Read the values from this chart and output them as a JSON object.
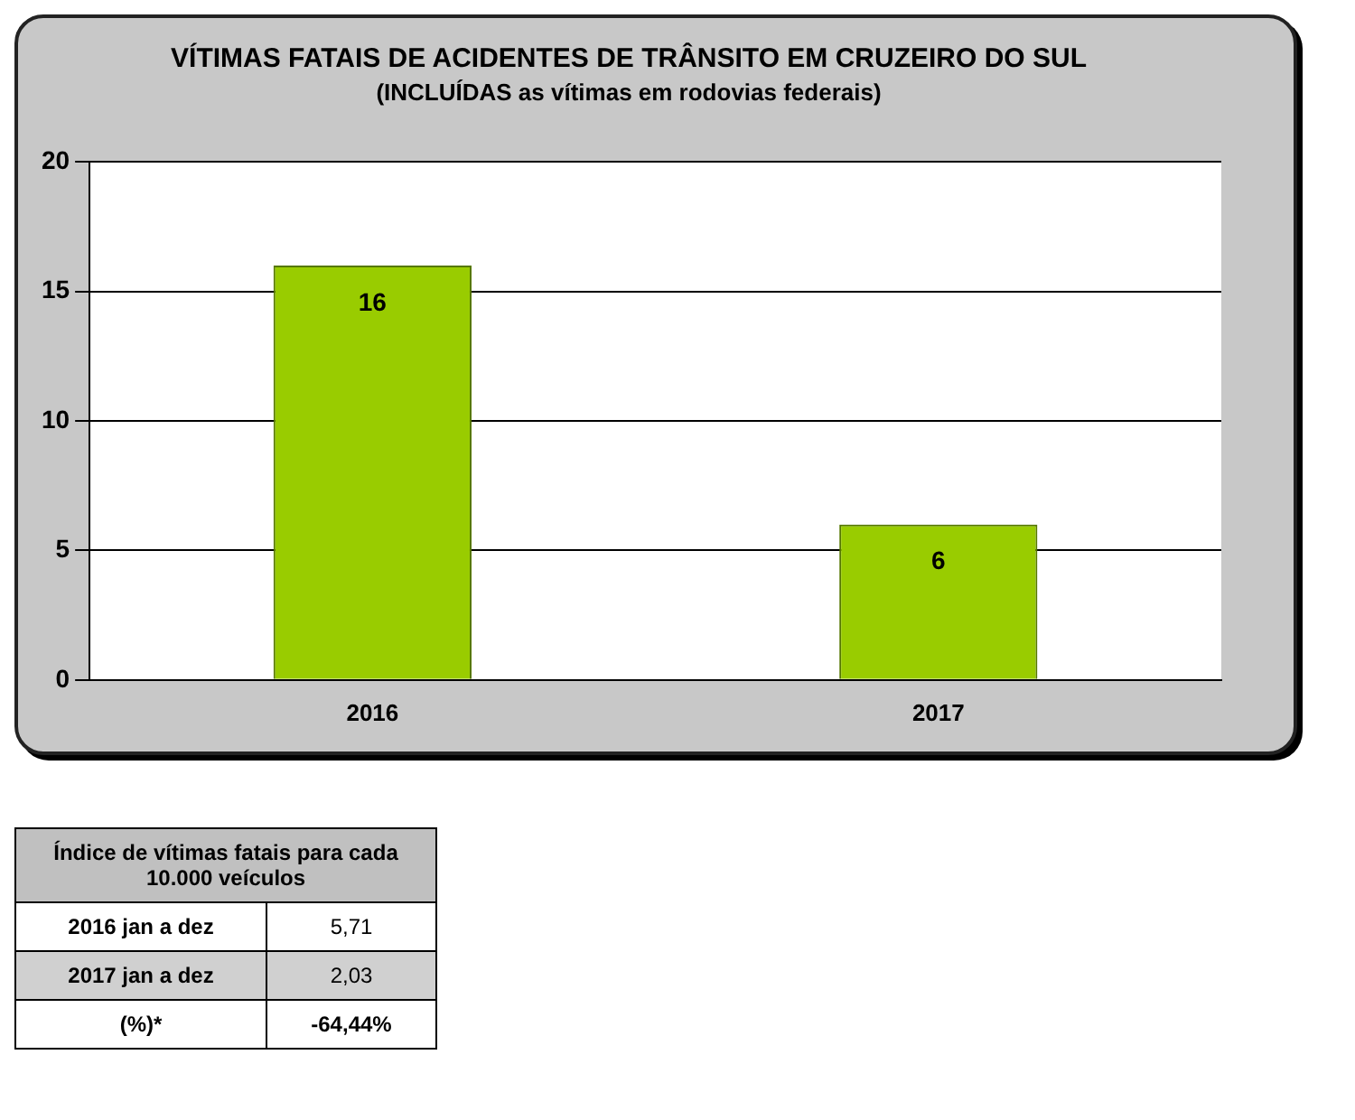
{
  "chart_data": [
    {
      "type": "bar",
      "title": "VÍTIMAS FATAIS DE ACIDENTES DE TRÂNSITO EM CRUZEIRO DO SUL",
      "subtitle": "(INCLUÍDAS as vítimas em rodovias federais)",
      "categories": [
        "2016",
        "2017"
      ],
      "values": [
        16,
        6
      ],
      "color": "#99cc00",
      "ylim": [
        0,
        20
      ],
      "yticks": [
        0,
        5,
        10,
        15,
        20
      ],
      "grid": "y",
      "data_labels": true,
      "legend": false
    },
    {
      "type": "other",
      "title": "Índice de vítimas fatais para cada 10.000 veículos",
      "annotations": [
        "2016 jan a dez",
        "5,71",
        "2017 jan a dez",
        "2,03",
        "(%)*",
        "-64,44%"
      ]
    }
  ]
}
